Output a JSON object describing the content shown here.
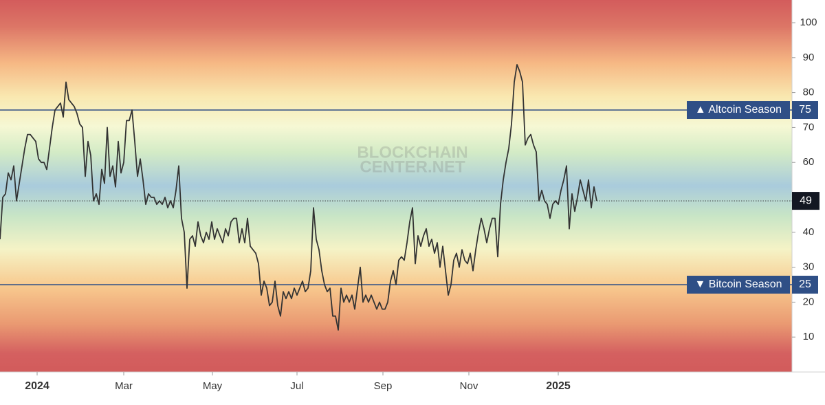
{
  "chart_data": {
    "type": "line",
    "watermark": [
      "BLOCKCHAIN",
      "CENTER.NET"
    ],
    "series": [
      {
        "color": "#333333",
        "values": [
          38,
          50,
          51,
          57,
          55,
          59,
          49,
          54,
          59,
          64,
          68,
          68,
          67,
          66,
          61,
          60,
          60,
          58,
          64,
          70,
          75,
          76,
          77,
          73,
          83,
          78,
          77,
          76,
          74,
          71,
          70,
          56,
          66,
          62,
          49,
          51,
          48,
          58,
          54,
          70,
          56,
          59,
          53,
          66,
          57,
          60,
          72,
          72,
          75,
          66,
          56,
          61,
          55,
          48,
          51,
          50,
          50,
          48,
          49,
          48,
          50,
          47,
          49,
          47,
          52,
          59,
          44,
          40,
          24,
          38,
          39,
          36,
          43,
          39,
          37,
          40,
          38,
          43,
          38,
          41,
          39,
          37,
          41,
          39,
          43,
          44,
          44,
          37,
          41,
          37,
          44,
          36,
          35,
          34,
          31,
          22,
          26,
          24,
          19,
          20,
          26,
          19,
          16,
          23,
          21,
          23,
          21,
          24,
          22,
          24,
          26,
          23,
          24,
          29,
          47,
          38,
          35,
          29,
          25,
          23,
          24,
          16,
          16,
          12,
          24,
          20,
          22,
          20,
          22,
          18,
          24,
          30,
          20,
          22,
          20,
          22,
          20,
          18,
          20,
          18,
          18,
          20,
          26,
          29,
          25,
          32,
          33,
          32,
          37,
          43,
          47,
          31,
          39,
          36,
          39,
          41,
          36,
          38,
          34,
          37,
          30,
          36,
          29,
          22,
          25,
          32,
          34,
          30,
          35,
          32,
          31,
          34,
          29,
          35,
          40,
          44,
          41,
          37,
          41,
          44,
          44,
          33,
          48,
          55,
          60,
          64,
          71,
          83,
          88,
          86,
          83,
          65,
          67,
          68,
          65,
          63,
          49,
          52,
          49,
          48,
          44,
          48,
          49,
          48,
          52,
          55,
          59,
          41,
          51,
          46,
          50,
          55,
          52,
          49,
          55,
          47,
          53,
          49
        ]
      }
    ],
    "xlim": [
      0,
      288
    ],
    "xticks": [
      {
        "value": 13.5,
        "label": "2024"
      },
      {
        "value": 45,
        "label": "Mar"
      },
      {
        "value": 77.25,
        "label": "May"
      },
      {
        "value": 108,
        "label": "Jul"
      },
      {
        "value": 139.25,
        "label": "Sep"
      },
      {
        "value": 170.5,
        "label": "Nov"
      },
      {
        "value": 203,
        "label": "2025"
      }
    ],
    "ylim": [
      0,
      106.5
    ],
    "yticks": [
      10,
      20,
      30,
      40,
      50,
      60,
      70,
      80,
      90,
      100
    ],
    "reference_lines": [
      {
        "value": 75,
        "label": "▲ Altcoin Season",
        "color": "#2f4f86"
      },
      {
        "value": 25,
        "label": "▼ Bitcoin Season",
        "color": "#2f4f86"
      }
    ]
  }
}
